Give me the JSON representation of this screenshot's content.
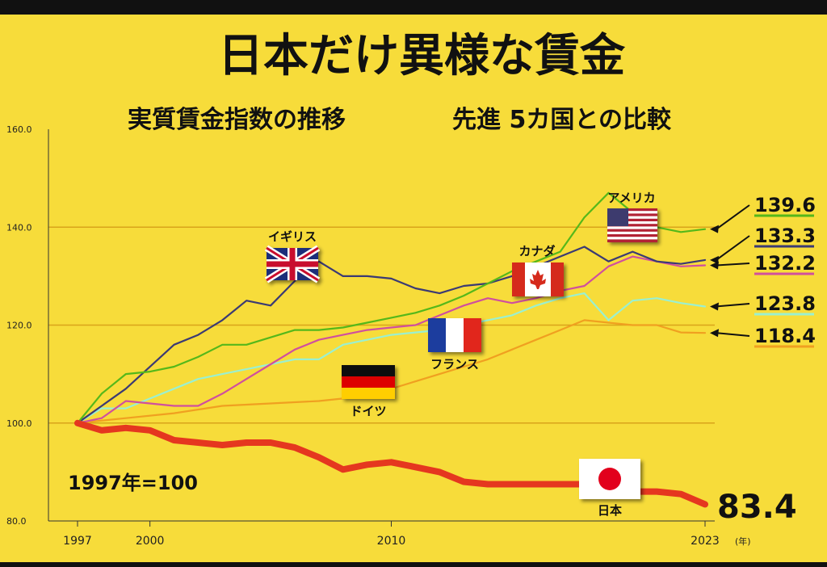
{
  "chart_data": {
    "type": "line",
    "title": "日本だけ異様な賃金",
    "subtitle": "実質賃金指数の推移",
    "subtitle2": "先進 5カ国との比較",
    "base_note": "1997年=100",
    "x_unit": "(年)",
    "x_ticks": [
      1997,
      2000,
      2010,
      2023
    ],
    "y_ticks": [
      "80.0",
      "100.0",
      "120.0",
      "140.0",
      "160.0"
    ],
    "ylim": [
      80,
      160
    ],
    "xlim": [
      1997,
      2023
    ],
    "series": [
      {
        "name": "イギリス",
        "color": "#3b3a74",
        "end_label": "133.3",
        "x": [
          1997,
          1999,
          2001,
          2002,
          2003,
          2004,
          2005,
          2006,
          2007,
          2008,
          2009,
          2010,
          2011,
          2012,
          2013,
          2014,
          2015,
          2016,
          2017,
          2018,
          2019,
          2020,
          2021,
          2022,
          2023
        ],
        "values": [
          100,
          107,
          116,
          118,
          121,
          125,
          124,
          129,
          133,
          130,
          130,
          129.5,
          127.5,
          126.5,
          128,
          128.5,
          130,
          132,
          134,
          136,
          133,
          135,
          133,
          132.5,
          133.3
        ]
      },
      {
        "name": "アメリカ",
        "color": "#55b81a",
        "end_label": "139.6",
        "x": [
          1997,
          1998,
          1999,
          2000,
          2001,
          2002,
          2003,
          2004,
          2005,
          2006,
          2007,
          2008,
          2009,
          2010,
          2011,
          2012,
          2013,
          2014,
          2015,
          2016,
          2017,
          2018,
          2019,
          2020,
          2021,
          2022,
          2023
        ],
        "values": [
          100,
          106,
          110,
          110.5,
          111.5,
          113.5,
          116,
          116,
          117.5,
          119,
          119,
          119.5,
          120.5,
          121.5,
          122.5,
          124,
          126,
          128.5,
          131,
          133,
          135,
          142,
          147,
          143,
          140,
          139,
          139.6
        ]
      },
      {
        "name": "カナダ",
        "color": "#d04f9e",
        "end_label": "132.2",
        "x": [
          1997,
          1998,
          1999,
          2000,
          2001,
          2002,
          2003,
          2004,
          2005,
          2006,
          2007,
          2008,
          2009,
          2010,
          2011,
          2012,
          2013,
          2014,
          2015,
          2016,
          2017,
          2018,
          2019,
          2020,
          2021,
          2022,
          2023
        ],
        "values": [
          100,
          101,
          104.5,
          104,
          103.5,
          103.5,
          106,
          109,
          112,
          115,
          117,
          118,
          119,
          119.5,
          120,
          122,
          124,
          125.5,
          124.5,
          125.5,
          127,
          128,
          132,
          134,
          133,
          132,
          132.2
        ]
      },
      {
        "name": "フランス",
        "color": "#9af0d0",
        "end_label": "123.8",
        "x": [
          1997,
          1998,
          1999,
          2000,
          2001,
          2002,
          2003,
          2004,
          2005,
          2006,
          2007,
          2008,
          2009,
          2010,
          2011,
          2012,
          2013,
          2014,
          2015,
          2016,
          2017,
          2018,
          2019,
          2020,
          2021,
          2022,
          2023
        ],
        "values": [
          100,
          103,
          103,
          105,
          107,
          109,
          110,
          111,
          112,
          113,
          113,
          116,
          117,
          118,
          118.5,
          119,
          120,
          121,
          122,
          124,
          125.5,
          126.5,
          121,
          125,
          125.5,
          124.5,
          123.8
        ]
      },
      {
        "name": "ドイツ",
        "color": "#f0a020",
        "end_label": "118.4",
        "x": [
          1997,
          1999,
          2001,
          2003,
          2005,
          2007,
          2008,
          2009,
          2010,
          2011,
          2012,
          2013,
          2014,
          2015,
          2016,
          2017,
          2018,
          2019,
          2020,
          2021,
          2022,
          2023
        ],
        "values": [
          100,
          101,
          102,
          103.5,
          104,
          104.5,
          105,
          106,
          107,
          108.5,
          110,
          111.5,
          113,
          115,
          117,
          119,
          121,
          120.5,
          120,
          120,
          118.5,
          118.4
        ]
      },
      {
        "name": "日本",
        "color": "#e5371f",
        "end_label": "83.4",
        "x": [
          1997,
          1998,
          1999,
          2000,
          2001,
          2002,
          2003,
          2004,
          2005,
          2006,
          2007,
          2008,
          2009,
          2010,
          2011,
          2012,
          2013,
          2014,
          2015,
          2016,
          2017,
          2018,
          2019,
          2020,
          2021,
          2022,
          2023
        ],
        "values": [
          100,
          98.5,
          99,
          98.5,
          96.5,
          96,
          95.5,
          96,
          96,
          95,
          93,
          90.5,
          91.5,
          92,
          91,
          90,
          88,
          87.5,
          87.5,
          87.5,
          87.5,
          87.5,
          87,
          86,
          86,
          85.5,
          83.4
        ]
      }
    ]
  }
}
